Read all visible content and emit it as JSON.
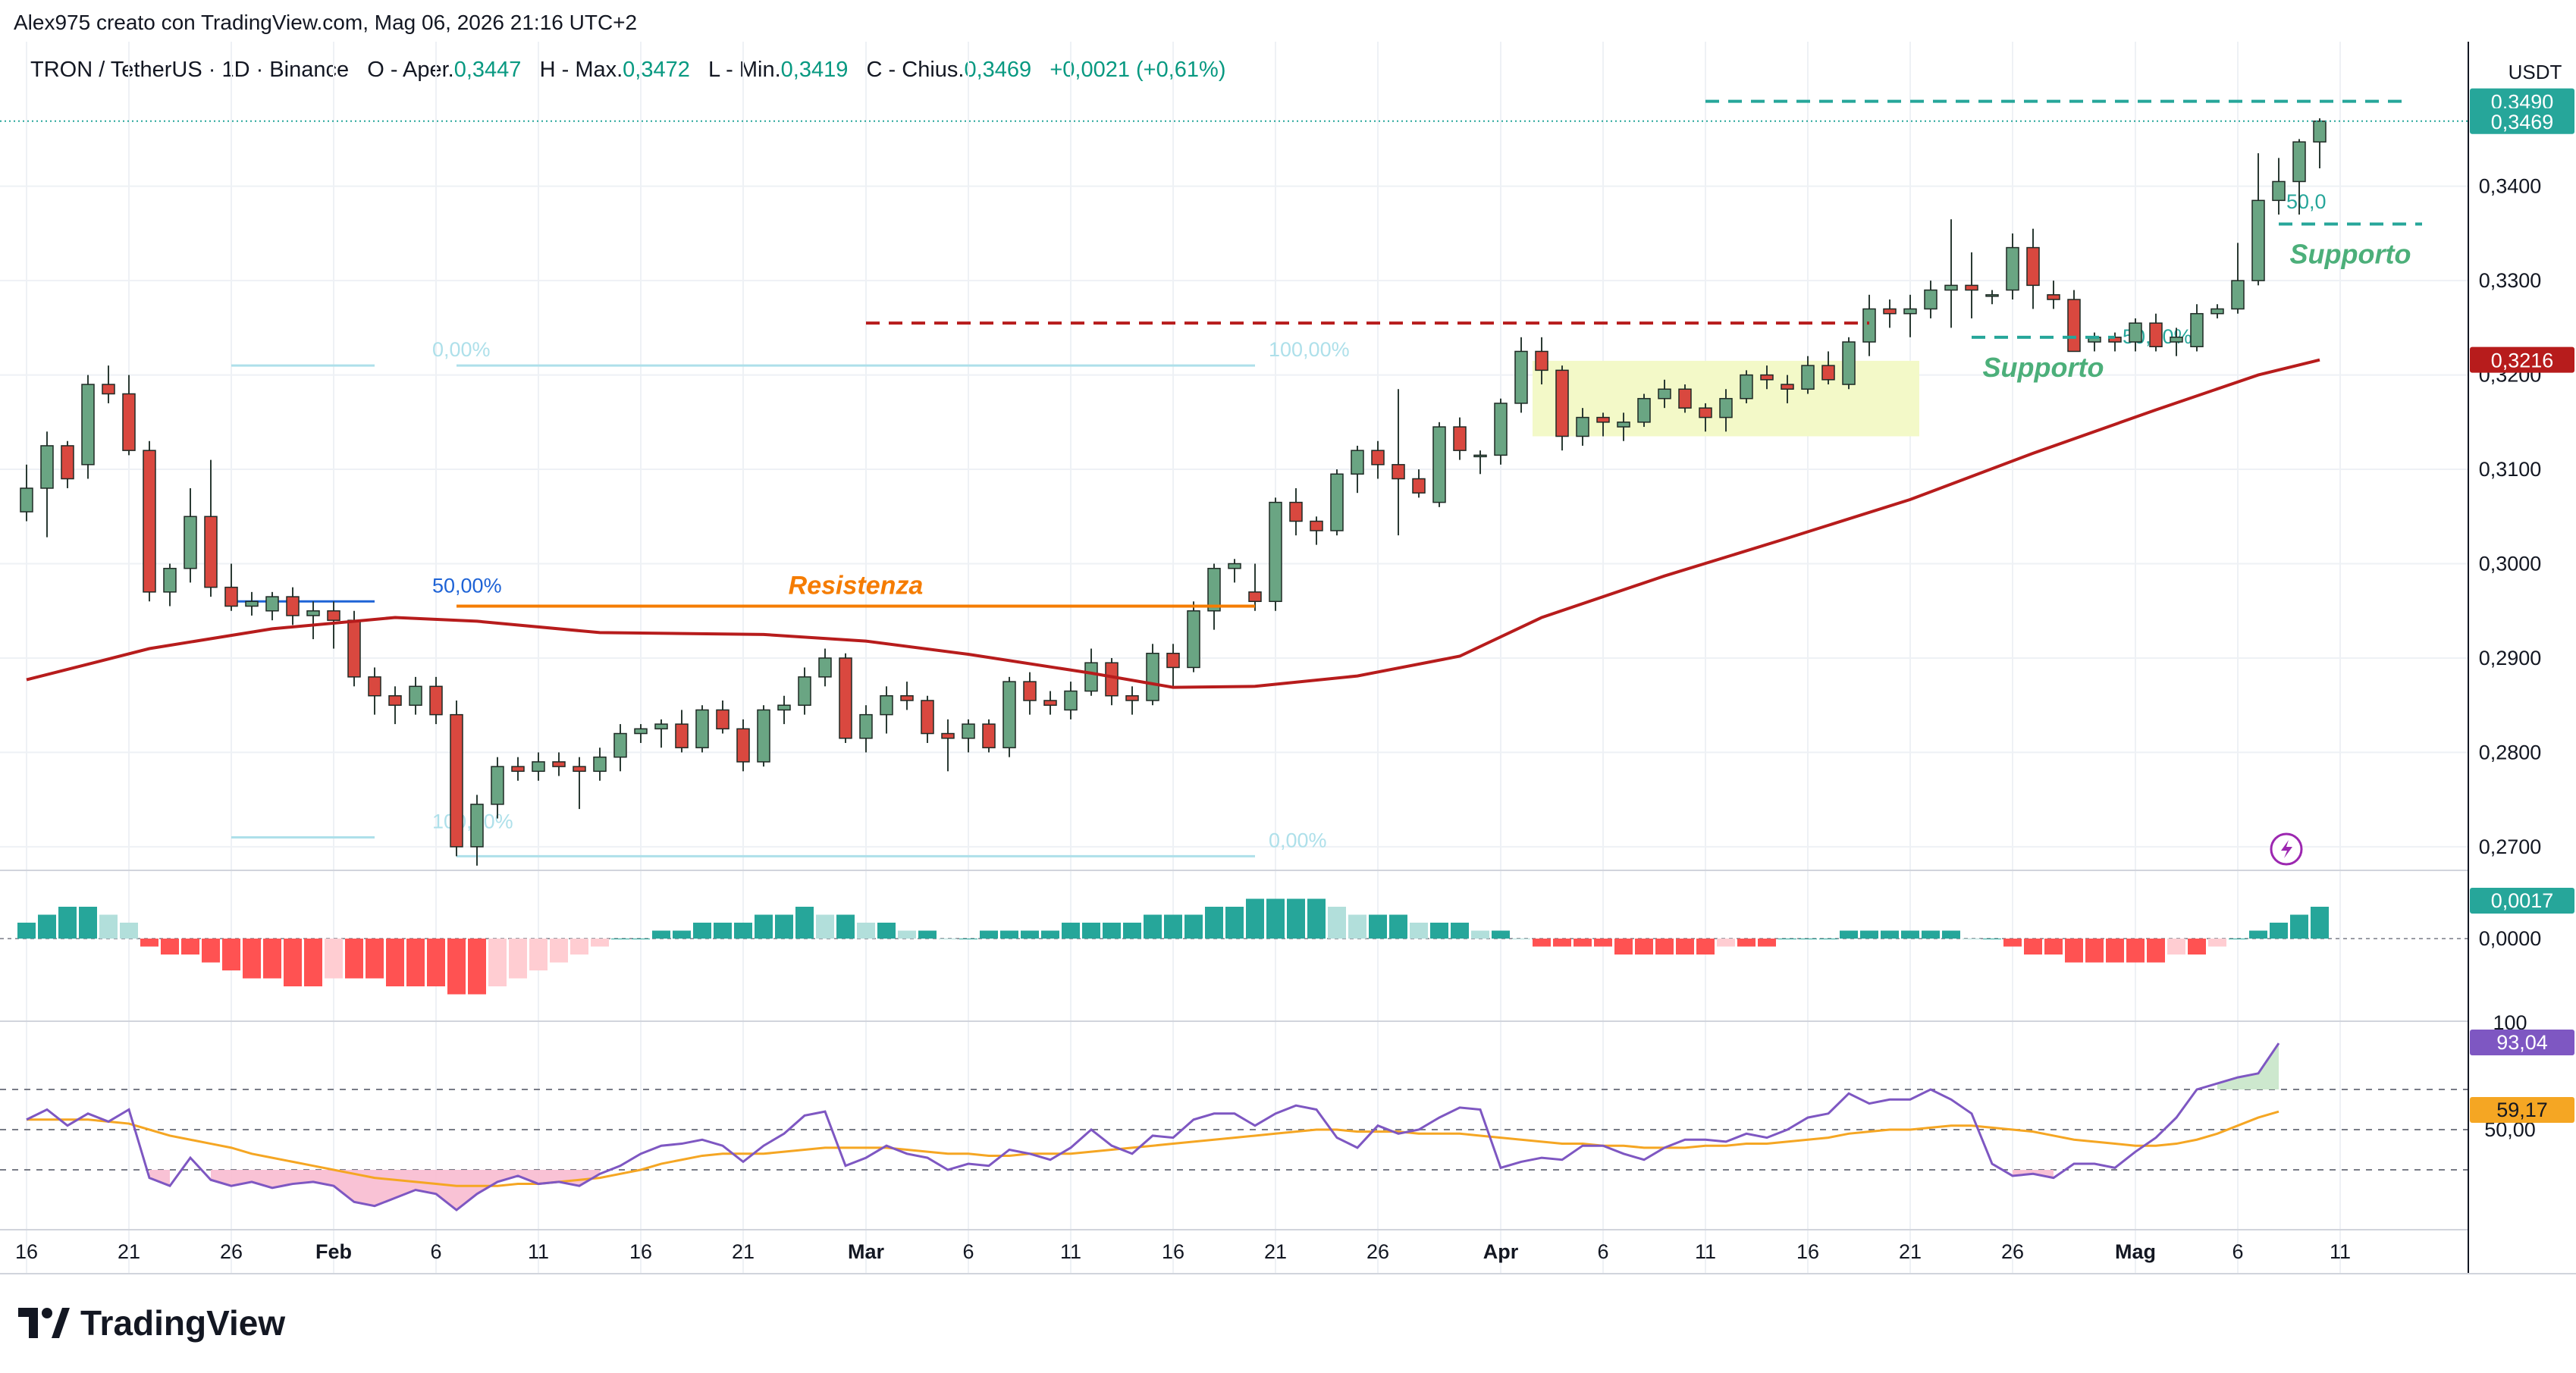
{
  "header": {
    "credit": "Alex975 creato con TradingView.com, Mag 06, 2026 21:16 UTC+2"
  },
  "legend": {
    "symbol": "TRON / TetherUS · 1D · Binance",
    "open_label": "O - Aper.",
    "open": "0,3447",
    "high_label": "H - Max.",
    "high": "0,3472",
    "low_label": "L - Min.",
    "low": "0,3419",
    "close_label": "C - Chius.",
    "close": "0,3469",
    "change": "+0,0021 (+0,61%)"
  },
  "brand": {
    "name": "TradingView",
    "logo_icon": "tradingview-logo-icon"
  },
  "colors": {
    "up": "#6aa583",
    "down": "#d9483f",
    "ma": "#b71c1c",
    "macd_pos_strong": "#26a69a",
    "macd_pos_weak": "#b2dfdb",
    "macd_neg_strong": "#ff5252",
    "macd_neg_weak": "#ffcdd2",
    "rsi": "#7e57c2",
    "rsi_ma": "#f5a623",
    "fib": "#aee0ea",
    "resistance": "#f57c00",
    "support": "#4caf7a",
    "level_red": "#b71c1c",
    "level_teal": "#26a69a"
  },
  "chart_data": {
    "type": "candlestick",
    "price_axis": {
      "unit": "USDT",
      "ticks": [
        "0,3400",
        "0,3300",
        "0,3200",
        "0,3100",
        "0,3000",
        "0,2900",
        "0,2800",
        "0,2700"
      ],
      "tick_values": [
        0.34,
        0.33,
        0.32,
        0.31,
        0.3,
        0.29,
        0.28,
        0.27
      ],
      "range": [
        0.2675,
        0.3505
      ],
      "badges": [
        {
          "label": "0,3490",
          "value": 0.349,
          "color": "#26a69a"
        },
        {
          "label": "0,3469",
          "value": 0.3469,
          "color": "#26a69a"
        },
        {
          "label": "0,3216",
          "value": 0.3216,
          "color": "#b71c1c"
        }
      ]
    },
    "x_axis": {
      "labels": [
        "16",
        "21",
        "26",
        "Feb",
        "6",
        "11",
        "16",
        "21",
        "Mar",
        "6",
        "11",
        "16",
        "21",
        "26",
        "Apr",
        "6",
        "11",
        "16",
        "21",
        "26",
        "Mag",
        "6",
        "11"
      ],
      "label_index": [
        0,
        5,
        10,
        15,
        20,
        25,
        30,
        35,
        41,
        46,
        51,
        56,
        61,
        66,
        72,
        77,
        82,
        87,
        92,
        97,
        103,
        108,
        113
      ],
      "bold": [
        "Feb",
        "Mar",
        "Apr",
        "Mag"
      ]
    },
    "candles": [
      [
        0.3055,
        0.3105,
        0.3045,
        0.308
      ],
      [
        0.308,
        0.314,
        0.3028,
        0.3125
      ],
      [
        0.3125,
        0.313,
        0.308,
        0.309
      ],
      [
        0.3105,
        0.32,
        0.309,
        0.319
      ],
      [
        0.319,
        0.321,
        0.317,
        0.318
      ],
      [
        0.318,
        0.32,
        0.3115,
        0.312
      ],
      [
        0.312,
        0.313,
        0.296,
        0.297
      ],
      [
        0.297,
        0.3,
        0.2955,
        0.2995
      ],
      [
        0.2995,
        0.308,
        0.298,
        0.305
      ],
      [
        0.305,
        0.311,
        0.2965,
        0.2975
      ],
      [
        0.2975,
        0.3,
        0.295,
        0.2955
      ],
      [
        0.2955,
        0.297,
        0.2945,
        0.296
      ],
      [
        0.295,
        0.297,
        0.294,
        0.2965
      ],
      [
        0.2965,
        0.2975,
        0.2935,
        0.2945
      ],
      [
        0.2945,
        0.296,
        0.292,
        0.295
      ],
      [
        0.295,
        0.296,
        0.291,
        0.294
      ],
      [
        0.294,
        0.295,
        0.287,
        0.288
      ],
      [
        0.288,
        0.289,
        0.284,
        0.286
      ],
      [
        0.286,
        0.287,
        0.283,
        0.285
      ],
      [
        0.285,
        0.288,
        0.284,
        0.287
      ],
      [
        0.287,
        0.288,
        0.283,
        0.284
      ],
      [
        0.284,
        0.2855,
        0.269,
        0.27
      ],
      [
        0.27,
        0.2755,
        0.268,
        0.2745
      ],
      [
        0.2745,
        0.2795,
        0.273,
        0.2785
      ],
      [
        0.2785,
        0.2795,
        0.277,
        0.278
      ],
      [
        0.278,
        0.28,
        0.277,
        0.279
      ],
      [
        0.279,
        0.28,
        0.2775,
        0.2785
      ],
      [
        0.2785,
        0.2795,
        0.274,
        0.278
      ],
      [
        0.278,
        0.2805,
        0.277,
        0.2795
      ],
      [
        0.2795,
        0.283,
        0.278,
        0.282
      ],
      [
        0.282,
        0.283,
        0.281,
        0.2825
      ],
      [
        0.2825,
        0.2835,
        0.2805,
        0.283
      ],
      [
        0.283,
        0.2845,
        0.28,
        0.2805
      ],
      [
        0.2805,
        0.285,
        0.28,
        0.2845
      ],
      [
        0.2845,
        0.2855,
        0.282,
        0.2825
      ],
      [
        0.2825,
        0.2835,
        0.278,
        0.279
      ],
      [
        0.279,
        0.285,
        0.2785,
        0.2845
      ],
      [
        0.2845,
        0.286,
        0.283,
        0.285
      ],
      [
        0.285,
        0.289,
        0.284,
        0.288
      ],
      [
        0.288,
        0.291,
        0.287,
        0.29
      ],
      [
        0.29,
        0.2905,
        0.281,
        0.2815
      ],
      [
        0.2815,
        0.285,
        0.28,
        0.284
      ],
      [
        0.284,
        0.287,
        0.282,
        0.286
      ],
      [
        0.286,
        0.2875,
        0.2845,
        0.2855
      ],
      [
        0.2855,
        0.286,
        0.281,
        0.282
      ],
      [
        0.282,
        0.2835,
        0.278,
        0.2815
      ],
      [
        0.2815,
        0.2835,
        0.28,
        0.283
      ],
      [
        0.283,
        0.2835,
        0.28,
        0.2805
      ],
      [
        0.2805,
        0.288,
        0.2795,
        0.2875
      ],
      [
        0.2875,
        0.2885,
        0.284,
        0.2855
      ],
      [
        0.2855,
        0.2865,
        0.284,
        0.285
      ],
      [
        0.2845,
        0.2875,
        0.2835,
        0.2865
      ],
      [
        0.2865,
        0.291,
        0.286,
        0.2895
      ],
      [
        0.2895,
        0.29,
        0.285,
        0.286
      ],
      [
        0.286,
        0.287,
        0.284,
        0.2855
      ],
      [
        0.2855,
        0.2915,
        0.285,
        0.2905
      ],
      [
        0.2905,
        0.2915,
        0.287,
        0.289
      ],
      [
        0.289,
        0.296,
        0.2885,
        0.295
      ],
      [
        0.295,
        0.3,
        0.293,
        0.2995
      ],
      [
        0.2995,
        0.3005,
        0.298,
        0.3
      ],
      [
        0.297,
        0.3,
        0.295,
        0.296
      ],
      [
        0.296,
        0.307,
        0.295,
        0.3065
      ],
      [
        0.3065,
        0.308,
        0.303,
        0.3045
      ],
      [
        0.3045,
        0.305,
        0.302,
        0.3035
      ],
      [
        0.3035,
        0.31,
        0.303,
        0.3095
      ],
      [
        0.3095,
        0.3125,
        0.3075,
        0.312
      ],
      [
        0.312,
        0.313,
        0.309,
        0.3105
      ],
      [
        0.3105,
        0.3185,
        0.303,
        0.309
      ],
      [
        0.309,
        0.31,
        0.307,
        0.3075
      ],
      [
        0.3065,
        0.315,
        0.306,
        0.3145
      ],
      [
        0.3145,
        0.3155,
        0.311,
        0.312
      ],
      [
        0.3115,
        0.312,
        0.3095,
        0.3115
      ],
      [
        0.3115,
        0.3175,
        0.3105,
        0.317
      ],
      [
        0.317,
        0.324,
        0.316,
        0.3225
      ],
      [
        0.3225,
        0.324,
        0.319,
        0.3205
      ],
      [
        0.3205,
        0.321,
        0.312,
        0.3135
      ],
      [
        0.3135,
        0.3165,
        0.3125,
        0.3155
      ],
      [
        0.3155,
        0.316,
        0.3135,
        0.315
      ],
      [
        0.3145,
        0.316,
        0.313,
        0.315
      ],
      [
        0.315,
        0.318,
        0.3145,
        0.3175
      ],
      [
        0.3175,
        0.3195,
        0.3165,
        0.3185
      ],
      [
        0.3185,
        0.319,
        0.316,
        0.3165
      ],
      [
        0.3165,
        0.317,
        0.314,
        0.3155
      ],
      [
        0.3155,
        0.3185,
        0.314,
        0.3175
      ],
      [
        0.3175,
        0.3205,
        0.317,
        0.32
      ],
      [
        0.32,
        0.321,
        0.3185,
        0.3195
      ],
      [
        0.319,
        0.32,
        0.317,
        0.3185
      ],
      [
        0.3185,
        0.322,
        0.318,
        0.321
      ],
      [
        0.321,
        0.3225,
        0.319,
        0.3195
      ],
      [
        0.319,
        0.324,
        0.3185,
        0.3235
      ],
      [
        0.3235,
        0.3285,
        0.322,
        0.327
      ],
      [
        0.327,
        0.328,
        0.325,
        0.3265
      ],
      [
        0.3265,
        0.3285,
        0.324,
        0.327
      ],
      [
        0.327,
        0.33,
        0.326,
        0.329
      ],
      [
        0.329,
        0.3365,
        0.325,
        0.3295
      ],
      [
        0.3295,
        0.333,
        0.326,
        0.329
      ],
      [
        0.3285,
        0.329,
        0.3275,
        0.3285
      ],
      [
        0.329,
        0.335,
        0.328,
        0.3335
      ],
      [
        0.3335,
        0.3355,
        0.327,
        0.3295
      ],
      [
        0.3285,
        0.33,
        0.327,
        0.328
      ],
      [
        0.328,
        0.329,
        0.3225,
        0.3225
      ],
      [
        0.3235,
        0.3245,
        0.3225,
        0.324
      ],
      [
        0.324,
        0.3245,
        0.3225,
        0.3235
      ],
      [
        0.3235,
        0.326,
        0.3225,
        0.3255
      ],
      [
        0.3255,
        0.3265,
        0.3225,
        0.323
      ],
      [
        0.3235,
        0.325,
        0.322,
        0.324
      ],
      [
        0.323,
        0.3275,
        0.3225,
        0.3265
      ],
      [
        0.3265,
        0.3275,
        0.326,
        0.327
      ],
      [
        0.327,
        0.334,
        0.3265,
        0.33
      ],
      [
        0.33,
        0.3435,
        0.3295,
        0.3385
      ],
      [
        0.3385,
        0.343,
        0.337,
        0.3405
      ],
      [
        0.3405,
        0.345,
        0.337,
        0.3447
      ],
      [
        0.3447,
        0.3472,
        0.3419,
        0.3469
      ]
    ],
    "ma_line": [
      [
        0,
        0.2877
      ],
      [
        6,
        0.291
      ],
      [
        12,
        0.2931
      ],
      [
        18,
        0.2943
      ],
      [
        22,
        0.2939
      ],
      [
        28,
        0.2927
      ],
      [
        36,
        0.2925
      ],
      [
        41,
        0.2918
      ],
      [
        46,
        0.2904
      ],
      [
        52,
        0.2884
      ],
      [
        56,
        0.2869
      ],
      [
        60,
        0.287
      ],
      [
        65,
        0.2881
      ],
      [
        70,
        0.2902
      ],
      [
        74,
        0.2943
      ],
      [
        80,
        0.2987
      ],
      [
        86,
        0.3027
      ],
      [
        92,
        0.3068
      ],
      [
        98,
        0.3117
      ],
      [
        104,
        0.3163
      ],
      [
        109,
        0.32
      ],
      [
        112,
        0.3216
      ]
    ],
    "macd": {
      "zero_label": "0,0000",
      "value_label": "0,0017",
      "values": [
        2,
        3,
        4,
        4,
        3,
        2,
        -1,
        -2,
        -2,
        -3,
        -4,
        -5,
        -5,
        -6,
        -6,
        -5,
        -5,
        -5,
        -6,
        -6,
        -6,
        -7,
        -7,
        -6,
        -5,
        -4,
        -3,
        -2,
        -1,
        0,
        0,
        1,
        1,
        2,
        2,
        2,
        3,
        3,
        4,
        3,
        3,
        2,
        2,
        1,
        1,
        0,
        0,
        1,
        1,
        1,
        1,
        2,
        2,
        2,
        2,
        3,
        3,
        3,
        4,
        4,
        5,
        5,
        5,
        5,
        4,
        3,
        3,
        3,
        2,
        2,
        2,
        1,
        1,
        0,
        -1,
        -1,
        -1,
        -1,
        -2,
        -2,
        -2,
        -2,
        -2,
        -1,
        -1,
        -1,
        0,
        0,
        0,
        1,
        1,
        1,
        1,
        1,
        1,
        0,
        0,
        -1,
        -2,
        -2,
        -3,
        -3,
        -3,
        -3,
        -3,
        -2,
        -2,
        -1,
        0,
        1,
        2,
        3,
        4
      ]
    },
    "rsi": {
      "label_100": "100",
      "label_50": "50,00",
      "value_label": "93,04",
      "ma_label": "59,17",
      "levels": [
        70,
        50,
        30
      ],
      "values": [
        55,
        60,
        52,
        58,
        54,
        60,
        26,
        22,
        36,
        25,
        22,
        24,
        21,
        23,
        24,
        22,
        14,
        12,
        16,
        20,
        18,
        10,
        18,
        24,
        27,
        23,
        24,
        22,
        28,
        32,
        38,
        42,
        43,
        45,
        42,
        34,
        42,
        48,
        57,
        59,
        32,
        36,
        42,
        38,
        36,
        30,
        33,
        32,
        40,
        38,
        35,
        41,
        50,
        42,
        38,
        47,
        46,
        55,
        58,
        58,
        52,
        58,
        62,
        60,
        46,
        41,
        52,
        48,
        50,
        56,
        61,
        60,
        31,
        34,
        36,
        35,
        42,
        42,
        38,
        35,
        41,
        45,
        45,
        44,
        48,
        46,
        50,
        56,
        58,
        68,
        63,
        65,
        65,
        70,
        65,
        58,
        33,
        27,
        28,
        26,
        33,
        33,
        31,
        39,
        46,
        56,
        70,
        73,
        76,
        78,
        93
      ],
      "ma": [
        55,
        55,
        55,
        55,
        54,
        53,
        50,
        47,
        45,
        43,
        41,
        38,
        36,
        34,
        32,
        30,
        28,
        26,
        25,
        24,
        23,
        22,
        22,
        22,
        23,
        23,
        24,
        25,
        26,
        28,
        30,
        33,
        35,
        37,
        38,
        38,
        38,
        39,
        40,
        41,
        41,
        41,
        41,
        40,
        39,
        38,
        38,
        37,
        37,
        38,
        38,
        38,
        39,
        40,
        41,
        42,
        43,
        44,
        45,
        46,
        47,
        48,
        49,
        50,
        50,
        49,
        49,
        49,
        48,
        48,
        48,
        47,
        46,
        45,
        44,
        43,
        43,
        42,
        42,
        41,
        41,
        41,
        42,
        42,
        43,
        43,
        44,
        45,
        46,
        48,
        49,
        50,
        50,
        51,
        52,
        52,
        51,
        50,
        49,
        47,
        45,
        44,
        43,
        42,
        42,
        43,
        45,
        48,
        52,
        56,
        59
      ]
    },
    "fibs": [
      {
        "labels": [
          "0,00%",
          "50,00%",
          "100,00%"
        ],
        "from": 10,
        "to": 17,
        "top": 0.321,
        "mid": 0.296,
        "bottom": 0.271
      },
      {
        "labels": [
          "100,00%",
          "50,00%",
          "0,00%"
        ],
        "from": 21,
        "to": 60,
        "top": 0.321,
        "mid": 0.2955,
        "bottom": 0.269
      },
      {
        "labels": [
          "50,00%"
        ],
        "from": 102,
        "to": 104,
        "mid": 0.324
      },
      {
        "labels": [
          "50,0"
        ],
        "from": 110,
        "to": 112,
        "mid": 0.3383
      }
    ],
    "levels": [
      {
        "kind": "resistance",
        "label": "Resistenza",
        "value": 0.2955,
        "from": 21,
        "to": 60
      },
      {
        "kind": "dashed-red",
        "value": 0.3255,
        "from": 41,
        "to": 90
      },
      {
        "kind": "dashed-teal",
        "value": 0.349,
        "from": 82,
        "to": 116
      },
      {
        "kind": "support",
        "label": "Supporto",
        "value": 0.324,
        "from": 95,
        "to": 102
      },
      {
        "kind": "support",
        "label": "Supporto",
        "value": 0.336,
        "from": 110,
        "to": 117
      }
    ],
    "range_box": {
      "from": 74,
      "to": 92,
      "top": 0.3215,
      "bottom": 0.3135
    }
  }
}
